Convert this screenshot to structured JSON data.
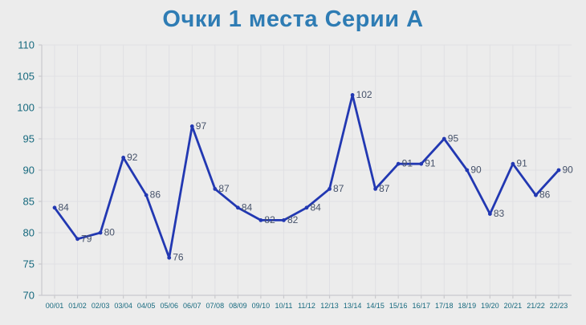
{
  "title": "Очки 1 места Серии А",
  "chart_data": {
    "type": "line",
    "title": "Очки 1 места Серии А",
    "categories": [
      "00/01",
      "01/02",
      "02/03",
      "03/04",
      "04/05",
      "05/06",
      "06/07",
      "07/08",
      "08/09",
      "09/10",
      "10/11",
      "11/12",
      "12/13",
      "13/14",
      "14/15",
      "15/16",
      "16/17",
      "17/18",
      "18/19",
      "19/20",
      "20/21",
      "21/22",
      "22/23"
    ],
    "values": [
      84,
      79,
      80,
      92,
      86,
      76,
      97,
      87,
      84,
      82,
      82,
      84,
      87,
      102,
      87,
      91,
      91,
      95,
      90,
      83,
      91,
      86,
      90
    ],
    "point_labels": [
      "84",
      "79",
      "80",
      "92",
      "86",
      "76",
      "97",
      "87",
      "84",
      "82",
      "82",
      "84",
      "87",
      "102",
      "87",
      "91",
      "91",
      "95",
      "90",
      "83",
      "91",
      "86",
      "90"
    ],
    "y_ticks": [
      "70",
      "75",
      "80",
      "85",
      "90",
      "95",
      "100",
      "105",
      "110"
    ],
    "ylim": [
      70,
      110
    ],
    "ytick_step": 5,
    "grid": true,
    "legend": false,
    "xlabel": "",
    "ylabel": "",
    "colors": {
      "line": "#2238b2",
      "marker": "#2238b2",
      "point_label": "#46526a",
      "tick_label": "#16697e",
      "title": "#2e7cb4",
      "grid": "#e0e0e3",
      "axis": "#c9c9cd",
      "background": "#ececec"
    }
  }
}
